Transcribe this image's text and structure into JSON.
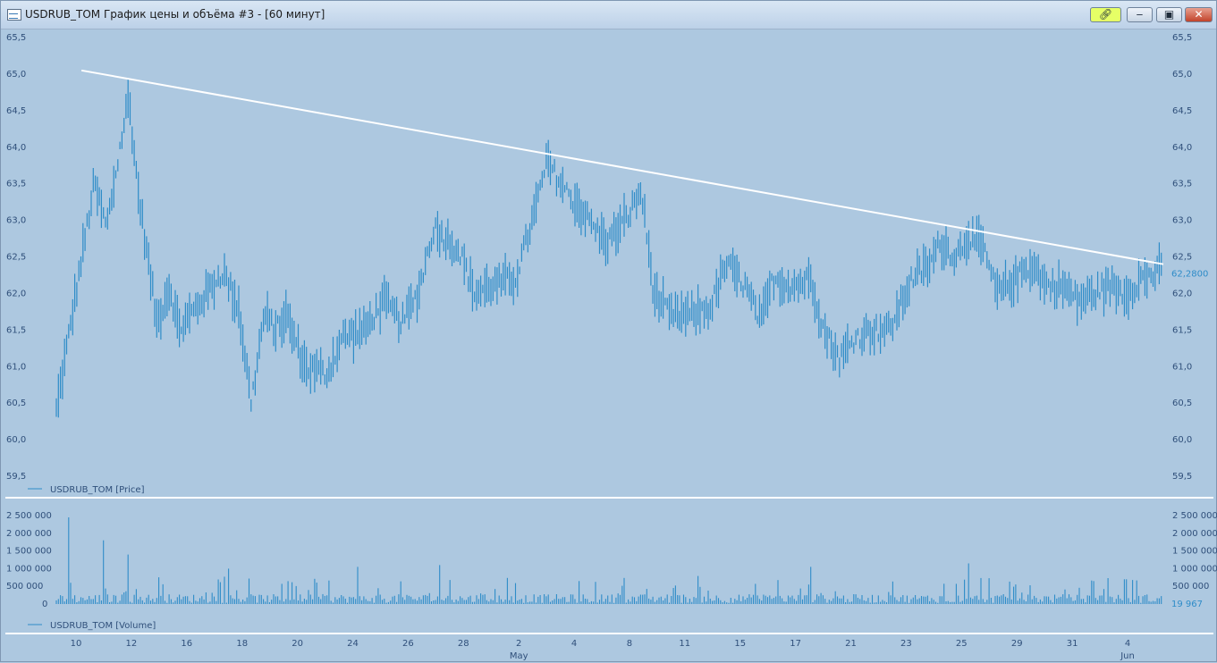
{
  "window": {
    "title": "USDRUB_TOM График цены и объёма #3 - [60 минут]",
    "link_icon": "link-icon",
    "min_icon": "minimize-icon",
    "max_icon": "maximize-icon",
    "close_icon": "close-icon",
    "accent": "#e6ff66",
    "bar_color": "#2e8cc8",
    "background": "#adc8e0"
  },
  "chart_data": [
    {
      "type": "bar",
      "name": "price",
      "legend": "USDRUB_TOM [Price]",
      "ylim": [
        59.5,
        65.5
      ],
      "yticks": [
        "65,5",
        "65,0",
        "64,5",
        "64,0",
        "63,5",
        "63,0",
        "62,5",
        "62,0",
        "61,5",
        "61,0",
        "60,5",
        "60,0",
        "59,5"
      ],
      "last_value": "62,2800",
      "trendline": {
        "from": [
          0.0,
          65.05
        ],
        "to": [
          1.0,
          62.4
        ]
      },
      "series_path": [
        [
          0,
          60.4
        ],
        [
          1.2,
          63.5
        ],
        [
          1.6,
          62.9
        ],
        [
          2.3,
          64.7
        ],
        [
          2.6,
          63.4
        ],
        [
          3.2,
          61.6
        ],
        [
          3.6,
          62.1
        ],
        [
          3.9,
          61.5
        ],
        [
          4.6,
          61.9
        ],
        [
          5.3,
          62.3
        ],
        [
          5.8,
          61.8
        ],
        [
          6.2,
          60.5
        ],
        [
          6.6,
          61.7
        ],
        [
          7.0,
          61.5
        ],
        [
          7.3,
          61.7
        ],
        [
          7.9,
          61.0
        ],
        [
          8.6,
          60.9
        ],
        [
          9.1,
          61.4
        ],
        [
          9.8,
          61.5
        ],
        [
          10.4,
          61.9
        ],
        [
          11.0,
          61.6
        ],
        [
          11.5,
          62.0
        ],
        [
          12.0,
          62.9
        ],
        [
          12.8,
          62.6
        ],
        [
          13.3,
          62.0
        ],
        [
          13.8,
          62.1
        ],
        [
          14.6,
          62.2
        ],
        [
          15.2,
          63.1
        ],
        [
          15.6,
          63.8
        ],
        [
          16.2,
          63.4
        ],
        [
          16.6,
          63.2
        ],
        [
          17.1,
          62.9
        ],
        [
          17.5,
          62.7
        ],
        [
          18.1,
          63.0
        ],
        [
          18.6,
          63.4
        ],
        [
          19.0,
          62.0
        ],
        [
          19.5,
          61.7
        ],
        [
          20.1,
          61.7
        ],
        [
          20.8,
          61.8
        ],
        [
          21.3,
          62.4
        ],
        [
          21.9,
          62.1
        ],
        [
          22.4,
          61.6
        ],
        [
          22.8,
          62.2
        ],
        [
          23.4,
          62.1
        ],
        [
          24.0,
          62.2
        ],
        [
          24.4,
          61.5
        ],
        [
          24.9,
          61.1
        ],
        [
          25.4,
          61.4
        ],
        [
          25.9,
          61.5
        ],
        [
          26.5,
          61.5
        ],
        [
          27.2,
          62.2
        ],
        [
          27.8,
          62.4
        ],
        [
          28.1,
          62.7
        ],
        [
          28.6,
          62.5
        ],
        [
          29.0,
          62.8
        ],
        [
          29.5,
          62.6
        ],
        [
          29.9,
          62.0
        ],
        [
          30.5,
          62.2
        ],
        [
          31.0,
          62.4
        ],
        [
          31.5,
          62.1
        ],
        [
          32.0,
          62.1
        ],
        [
          32.5,
          61.9
        ],
        [
          33.0,
          62.0
        ],
        [
          33.5,
          62.1
        ],
        [
          34.0,
          62.0
        ],
        [
          34.5,
          62.2
        ],
        [
          35.1,
          62.3
        ]
      ],
      "x_range": [
        0,
        35.2
      ],
      "x_ticks": [
        "10",
        "12",
        "16",
        "18",
        "20",
        "24",
        "26",
        "28",
        "2",
        "4",
        "8",
        "11",
        "15",
        "17",
        "21",
        "23",
        "25",
        "29",
        "31",
        "4"
      ],
      "x_tick_pos": [
        0.6,
        2.6,
        4.6,
        6.6,
        8.6,
        10.6,
        12.6,
        14.6,
        16.6,
        18.6,
        20.6,
        22.6,
        24.6,
        26.6,
        28.6,
        30.6,
        32.6,
        34.6,
        36.6,
        38.6
      ],
      "months": [
        {
          "label": "May",
          "at": 16.6
        },
        {
          "label": "Jun",
          "at": 38.6
        }
      ]
    },
    {
      "type": "bar",
      "name": "volume",
      "legend": "USDRUB_TOM [Volume]",
      "ylim": [
        0,
        2500000
      ],
      "yticks": [
        "2 500 000",
        "2 000 000",
        "1 500 000",
        "1 000 000",
        "500 000",
        "0"
      ],
      "last_value": "19 967",
      "peaks": [
        {
          "at": 0.4,
          "value": 2450000
        },
        {
          "at": 1.5,
          "value": 1800000
        },
        {
          "at": 2.3,
          "value": 1400000
        },
        {
          "at": 5.5,
          "value": 1000000
        },
        {
          "at": 9.6,
          "value": 1050000
        },
        {
          "at": 12.2,
          "value": 1100000
        },
        {
          "at": 24.0,
          "value": 1050000
        },
        {
          "at": 29.0,
          "value": 1150000
        },
        {
          "at": 34.0,
          "value": 700000
        }
      ]
    }
  ]
}
